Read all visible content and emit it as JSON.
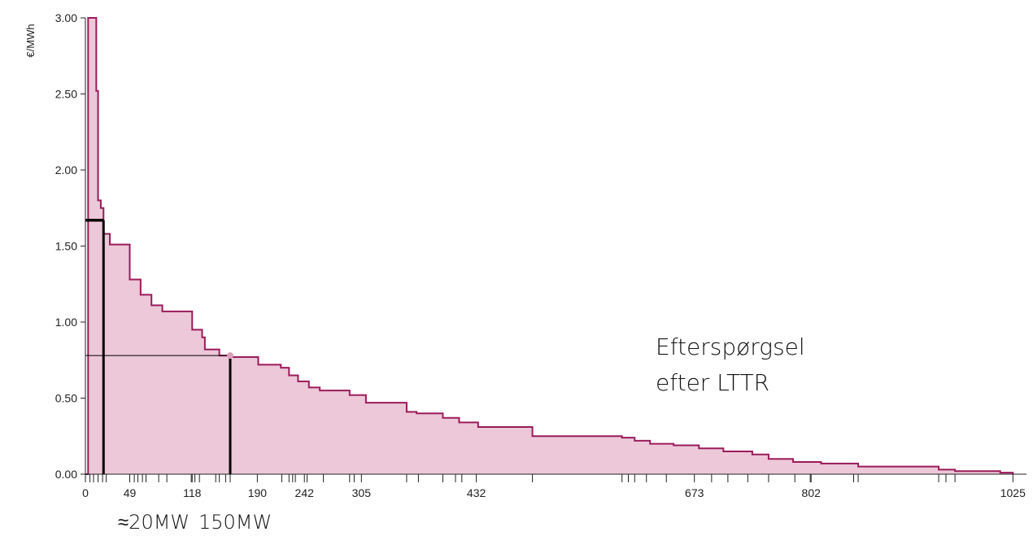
{
  "chart_data": {
    "type": "step-area",
    "y_label": "€/MWh",
    "color": "#9b1b5a",
    "fill": "#ecc8d8",
    "xlim": [
      0,
      1040
    ],
    "ylim": [
      0,
      3
    ],
    "yticks": [
      {
        "value": 0,
        "label": "0.00"
      },
      {
        "value": 0.5,
        "label": "0.50"
      },
      {
        "value": 1,
        "label": "1.00"
      },
      {
        "value": 1.5,
        "label": "1.50"
      },
      {
        "value": 2,
        "label": "2.00"
      },
      {
        "value": 2.5,
        "label": "2.50"
      },
      {
        "value": 3,
        "label": "3.00"
      }
    ],
    "xticks": [
      0,
      49,
      118,
      190,
      242,
      305,
      432,
      673,
      802,
      1025
    ],
    "minor_xticks": [
      5,
      9,
      14,
      19,
      23,
      54,
      58,
      63,
      67,
      81,
      90,
      117,
      121,
      126,
      144,
      148,
      155,
      160,
      217,
      225,
      229,
      232,
      245,
      263,
      292,
      297,
      355,
      368,
      395,
      409,
      416,
      494,
      593,
      600,
      607,
      620,
      642,
      692,
      710,
      732,
      755,
      784,
      801,
      849,
      854,
      943,
      951,
      961
    ],
    "x": [
      0,
      3,
      12,
      14,
      17,
      20,
      27,
      49,
      61,
      73,
      85,
      118,
      129,
      132,
      148,
      159,
      191,
      216,
      225,
      235,
      247,
      259,
      292,
      310,
      355,
      366,
      395,
      413,
      434,
      494,
      593,
      607,
      624,
      650,
      678,
      705,
      737,
      755,
      782,
      813,
      854,
      943,
      961,
      1011,
      1025
    ],
    "values": [
      0,
      3.0,
      2.52,
      1.8,
      1.75,
      1.58,
      1.51,
      1.28,
      1.18,
      1.11,
      1.07,
      0.95,
      0.9,
      0.82,
      0.78,
      0.77,
      0.72,
      0.7,
      0.65,
      0.61,
      0.57,
      0.55,
      0.52,
      0.47,
      0.41,
      0.4,
      0.37,
      0.34,
      0.31,
      0.25,
      0.24,
      0.22,
      0.2,
      0.19,
      0.17,
      0.15,
      0.13,
      0.1,
      0.08,
      0.07,
      0.05,
      0.03,
      0.02,
      0.01,
      0
    ],
    "reference_lines": [
      {
        "x": 20,
        "y": 1.67,
        "label": "≈20MW"
      },
      {
        "x": 160,
        "y": 0.78,
        "label": "150MW"
      }
    ],
    "series_label": [
      "Efterspørgsel",
      "efter LTTR"
    ]
  }
}
